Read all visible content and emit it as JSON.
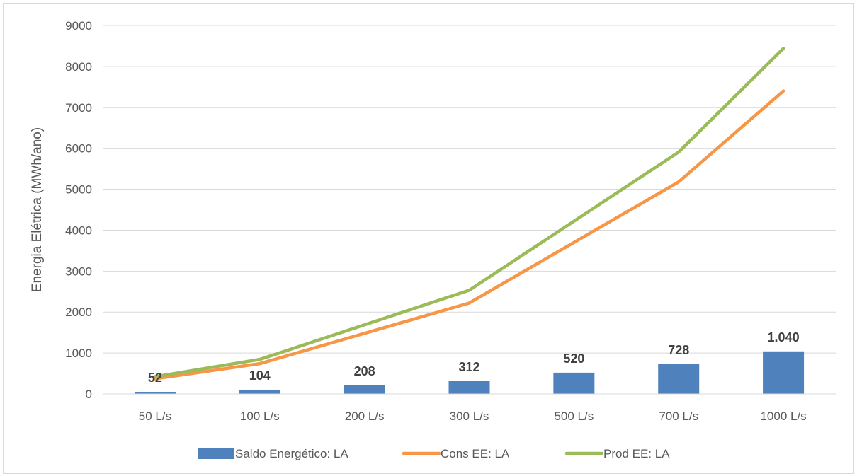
{
  "chart_data": {
    "type": "bar",
    "title": "",
    "xlabel": "",
    "ylabel": "Energia Elétrica (MWh/ano)",
    "ylim": [
      0,
      9000
    ],
    "yticks": [
      0,
      1000,
      2000,
      3000,
      4000,
      5000,
      6000,
      7000,
      8000,
      9000
    ],
    "grid": true,
    "legend_position": "bottom",
    "categories": [
      "50 L/s",
      "100 L/s",
      "200 L/s",
      "300 L/s",
      "500 L/s",
      "700 L/s",
      "1000 L/s"
    ],
    "series": [
      {
        "name": "Saldo Energético: LA",
        "type": "bar",
        "color": "#4f81bd",
        "values": [
          52,
          104,
          208,
          312,
          520,
          728,
          1040
        ],
        "labels": [
          "52",
          "104",
          "208",
          "312",
          "520",
          "728",
          "1.040"
        ]
      },
      {
        "name": "Cons EE: LA",
        "type": "line",
        "color": "#f79646",
        "values": [
          370,
          740,
          1480,
          2220,
          3700,
          5180,
          7400
        ]
      },
      {
        "name": "Prod EE: LA",
        "type": "line",
        "color": "#9bbb59",
        "values": [
          422,
          844,
          1688,
          2532,
          4220,
          5908,
          8440
        ]
      }
    ]
  }
}
